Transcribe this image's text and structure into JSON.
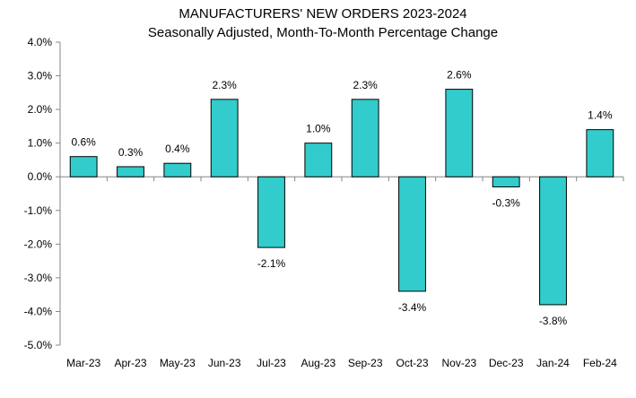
{
  "chart_data": {
    "type": "bar",
    "title": "MANUFACTURERS' NEW ORDERS 2023-2024",
    "subtitle": "Seasonally Adjusted,  Month-To-Month Percentage Change",
    "xlabel": "",
    "ylabel": "",
    "ylim": [
      -5.0,
      4.0
    ],
    "ytick_step": 1.0,
    "yticks": [
      "4.0%",
      "3.0%",
      "2.0%",
      "1.0%",
      "0.0%",
      "-1.0%",
      "-2.0%",
      "-3.0%",
      "-4.0%",
      "-5.0%"
    ],
    "categories": [
      "Mar-23",
      "Apr-23",
      "May-23",
      "Jun-23",
      "Jul-23",
      "Aug-23",
      "Sep-23",
      "Oct-23",
      "Nov-23",
      "Dec-23",
      "Jan-24",
      "Feb-24"
    ],
    "values": [
      0.6,
      0.3,
      0.4,
      2.3,
      -2.1,
      1.0,
      2.3,
      -3.4,
      2.6,
      -0.3,
      -3.8,
      1.4
    ],
    "data_labels": [
      "0.6%",
      "0.3%",
      "0.4%",
      "2.3%",
      "-2.1%",
      "1.0%",
      "2.3%",
      "-3.4%",
      "2.6%",
      "-0.3%",
      "-3.8%",
      "1.4%"
    ],
    "bar_color": "#33CCCC",
    "grid": false,
    "legend": "none"
  }
}
